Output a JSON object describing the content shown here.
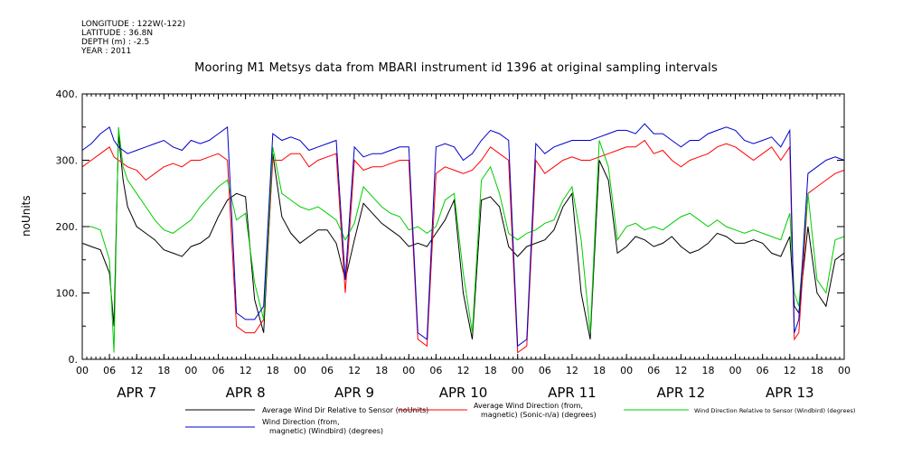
{
  "header": {
    "longitude": "LONGITUDE : 122W(-122)",
    "latitude": "LATITUDE : 36.8N",
    "depth": "DEPTH (m) : -2.5",
    "year": "YEAR : 2011"
  },
  "chart_data": {
    "type": "line",
    "title": "Mooring M1 Metsys data from MBARI instrument id 1396 at original sampling intervals",
    "ylabel": "noUnits",
    "xlabel": "",
    "ylim": [
      0,
      400
    ],
    "yticks": [
      "0.",
      "100.",
      "200.",
      "300.",
      "400."
    ],
    "xlim_hours": [
      0,
      168
    ],
    "hour_ticks": [
      "00",
      "06",
      "12",
      "18",
      "00",
      "06",
      "12",
      "18",
      "00",
      "06",
      "12",
      "18",
      "00",
      "06",
      "12",
      "18",
      "00",
      "06",
      "12",
      "18",
      "00",
      "06",
      "12",
      "18",
      "00",
      "06",
      "12",
      "18",
      "00"
    ],
    "day_labels": [
      "APR  7",
      "APR  8",
      "APR  9",
      "APR 10",
      "APR 11",
      "APR 12",
      "APR 13"
    ],
    "grid": false,
    "legend_position": "bottom",
    "series": [
      {
        "name": "Average Wind Dir Relative to Sensor (noUnits)",
        "color": "#000000",
        "x": [
          0,
          2,
          4,
          6,
          7,
          8,
          9,
          10,
          12,
          14,
          16,
          18,
          20,
          22,
          24,
          26,
          28,
          30,
          32,
          34,
          36,
          38,
          40,
          42,
          44,
          46,
          48,
          50,
          52,
          54,
          56,
          58,
          60,
          62,
          64,
          66,
          68,
          70,
          72,
          74,
          76,
          78,
          80,
          82,
          84,
          86,
          88,
          90,
          92,
          94,
          96,
          98,
          100,
          102,
          104,
          106,
          108,
          110,
          112,
          114,
          116,
          118,
          120,
          122,
          124,
          126,
          128,
          130,
          132,
          134,
          136,
          138,
          140,
          142,
          144,
          146,
          148,
          150,
          152,
          154,
          156,
          157,
          158,
          160,
          162,
          164,
          166,
          168
        ],
        "y": [
          175,
          170,
          165,
          130,
          50,
          340,
          270,
          230,
          200,
          190,
          180,
          165,
          160,
          155,
          170,
          175,
          185,
          215,
          240,
          250,
          245,
          90,
          40,
          310,
          215,
          190,
          175,
          185,
          195,
          195,
          175,
          120,
          180,
          235,
          220,
          205,
          195,
          185,
          170,
          175,
          170,
          190,
          210,
          240,
          100,
          30,
          240,
          245,
          230,
          170,
          155,
          170,
          175,
          180,
          195,
          230,
          250,
          100,
          30,
          300,
          270,
          160,
          170,
          185,
          180,
          170,
          175,
          185,
          170,
          160,
          165,
          175,
          190,
          185,
          175,
          175,
          180,
          175,
          160,
          155,
          185,
          80,
          70,
          200,
          100,
          80,
          150,
          160
        ]
      },
      {
        "name": "Average Wind Direction (from, magnetic) (Sonic-n/a) (degrees)",
        "color": "#ff0000",
        "x": [
          0,
          2,
          4,
          6,
          7,
          8,
          9,
          10,
          12,
          14,
          16,
          18,
          20,
          22,
          24,
          26,
          28,
          30,
          32,
          34,
          36,
          38,
          40,
          42,
          44,
          46,
          48,
          50,
          52,
          54,
          56,
          58,
          60,
          62,
          64,
          66,
          68,
          70,
          72,
          74,
          76,
          78,
          80,
          82,
          84,
          86,
          88,
          90,
          92,
          94,
          96,
          98,
          100,
          102,
          104,
          106,
          108,
          110,
          112,
          114,
          116,
          118,
          120,
          122,
          124,
          126,
          128,
          130,
          132,
          134,
          136,
          138,
          140,
          142,
          144,
          146,
          148,
          150,
          152,
          154,
          156,
          157,
          158,
          160,
          162,
          164,
          166,
          168
        ],
        "y": [
          290,
          300,
          310,
          320,
          305,
          300,
          295,
          290,
          285,
          270,
          280,
          290,
          295,
          290,
          300,
          300,
          305,
          310,
          300,
          50,
          40,
          40,
          60,
          300,
          300,
          310,
          310,
          290,
          300,
          305,
          310,
          100,
          300,
          285,
          290,
          290,
          295,
          300,
          300,
          30,
          20,
          280,
          290,
          285,
          280,
          285,
          300,
          320,
          310,
          300,
          10,
          20,
          300,
          280,
          290,
          300,
          305,
          300,
          300,
          305,
          310,
          315,
          320,
          320,
          330,
          310,
          315,
          300,
          290,
          300,
          305,
          310,
          320,
          325,
          320,
          310,
          300,
          310,
          320,
          300,
          320,
          30,
          40,
          250,
          260,
          270,
          280,
          285
        ]
      },
      {
        "name": "Wind Direction Relative to Sensor (Windbird) (degrees)",
        "color": "#00cc00",
        "x": [
          0,
          2,
          4,
          6,
          7,
          8,
          9,
          10,
          12,
          14,
          16,
          18,
          20,
          22,
          24,
          26,
          28,
          30,
          32,
          34,
          36,
          38,
          40,
          42,
          44,
          46,
          48,
          50,
          52,
          54,
          56,
          58,
          60,
          62,
          64,
          66,
          68,
          70,
          72,
          74,
          76,
          78,
          80,
          82,
          84,
          86,
          88,
          90,
          92,
          94,
          96,
          98,
          100,
          102,
          104,
          106,
          108,
          110,
          112,
          114,
          116,
          118,
          120,
          122,
          124,
          126,
          128,
          130,
          132,
          134,
          136,
          138,
          140,
          142,
          144,
          146,
          148,
          150,
          152,
          154,
          156,
          157,
          158,
          160,
          162,
          164,
          166,
          168
        ],
        "y": [
          200,
          200,
          195,
          150,
          10,
          350,
          290,
          270,
          250,
          230,
          210,
          195,
          190,
          200,
          210,
          230,
          245,
          260,
          270,
          210,
          220,
          115,
          60,
          320,
          250,
          240,
          230,
          225,
          230,
          220,
          210,
          180,
          205,
          260,
          245,
          230,
          220,
          215,
          195,
          200,
          190,
          200,
          240,
          250,
          130,
          40,
          270,
          290,
          250,
          190,
          180,
          190,
          195,
          205,
          210,
          240,
          260,
          180,
          40,
          330,
          290,
          180,
          200,
          205,
          195,
          200,
          195,
          205,
          215,
          220,
          210,
          200,
          210,
          200,
          195,
          190,
          195,
          190,
          185,
          180,
          220,
          100,
          80,
          250,
          120,
          100,
          180,
          185
        ]
      },
      {
        "name": "Wind Direction (from, magnetic) (Windbird) (degrees)",
        "color": "#0000cc",
        "x": [
          0,
          2,
          4,
          6,
          7,
          8,
          9,
          10,
          12,
          14,
          16,
          18,
          20,
          22,
          24,
          26,
          28,
          30,
          32,
          34,
          36,
          38,
          40,
          42,
          44,
          46,
          48,
          50,
          52,
          54,
          56,
          58,
          60,
          62,
          64,
          66,
          68,
          70,
          72,
          74,
          76,
          78,
          80,
          82,
          84,
          86,
          88,
          90,
          92,
          94,
          96,
          98,
          100,
          102,
          104,
          106,
          108,
          110,
          112,
          114,
          116,
          118,
          120,
          122,
          124,
          126,
          128,
          130,
          132,
          134,
          136,
          138,
          140,
          142,
          144,
          146,
          148,
          150,
          152,
          154,
          156,
          157,
          158,
          160,
          162,
          164,
          166,
          168
        ],
        "y": [
          315,
          325,
          340,
          350,
          330,
          320,
          315,
          310,
          315,
          320,
          325,
          330,
          320,
          315,
          330,
          325,
          330,
          340,
          350,
          70,
          60,
          60,
          80,
          340,
          330,
          335,
          330,
          315,
          320,
          325,
          330,
          120,
          320,
          305,
          310,
          310,
          315,
          320,
          320,
          40,
          30,
          320,
          325,
          320,
          300,
          310,
          330,
          345,
          340,
          330,
          20,
          30,
          325,
          310,
          320,
          325,
          330,
          330,
          330,
          335,
          340,
          345,
          345,
          340,
          355,
          340,
          340,
          330,
          320,
          330,
          330,
          340,
          345,
          350,
          345,
          330,
          325,
          330,
          335,
          320,
          345,
          40,
          60,
          280,
          290,
          300,
          305,
          300
        ]
      }
    ]
  }
}
